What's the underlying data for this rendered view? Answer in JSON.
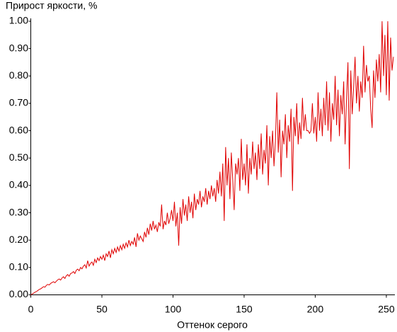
{
  "chart_data": {
    "type": "line",
    "title": "Прирост яркости, %",
    "x_label": "Оттенок серого",
    "x": [
      0,
      1,
      2,
      3,
      4,
      5,
      6,
      7,
      8,
      9,
      10,
      11,
      12,
      13,
      14,
      15,
      16,
      17,
      18,
      19,
      20,
      21,
      22,
      23,
      24,
      25,
      26,
      27,
      28,
      29,
      30,
      31,
      32,
      33,
      34,
      35,
      36,
      37,
      38,
      39,
      40,
      41,
      42,
      43,
      44,
      45,
      46,
      47,
      48,
      49,
      50,
      51,
      52,
      53,
      54,
      55,
      56,
      57,
      58,
      59,
      60,
      61,
      62,
      63,
      64,
      65,
      66,
      67,
      68,
      69,
      70,
      71,
      72,
      73,
      74,
      75,
      76,
      77,
      78,
      79,
      80,
      81,
      82,
      83,
      84,
      85,
      86,
      87,
      88,
      89,
      90,
      91,
      92,
      93,
      94,
      95,
      96,
      97,
      98,
      99,
      100,
      101,
      102,
      103,
      104,
      105,
      106,
      107,
      108,
      109,
      110,
      111,
      112,
      113,
      114,
      115,
      116,
      117,
      118,
      119,
      120,
      121,
      122,
      123,
      124,
      125,
      126,
      127,
      128,
      129,
      130,
      131,
      132,
      133,
      134,
      135,
      136,
      137,
      138,
      139,
      140,
      141,
      142,
      143,
      144,
      145,
      146,
      147,
      148,
      149,
      150,
      151,
      152,
      153,
      154,
      155,
      156,
      157,
      158,
      159,
      160,
      161,
      162,
      163,
      164,
      165,
      166,
      167,
      168,
      169,
      170,
      171,
      172,
      173,
      174,
      175,
      176,
      177,
      178,
      179,
      180,
      181,
      182,
      183,
      184,
      185,
      186,
      187,
      188,
      189,
      190,
      191,
      192,
      193,
      194,
      195,
      196,
      197,
      198,
      199,
      200,
      201,
      202,
      203,
      204,
      205,
      206,
      207,
      208,
      209,
      210,
      211,
      212,
      213,
      214,
      215,
      216,
      217,
      218,
      219,
      220,
      221,
      222,
      223,
      224,
      225,
      226,
      227,
      228,
      229,
      230,
      231,
      232,
      233,
      234,
      235,
      236,
      237,
      238,
      239,
      240,
      241,
      242,
      243,
      244,
      245,
      246,
      247,
      248,
      249,
      250,
      251,
      252,
      253,
      254,
      255
    ],
    "series": [
      {
        "color": "#e00000",
        "values": [
          0,
          0.003,
          0.006,
          0.01,
          0.012,
          0.016,
          0.02,
          0.022,
          0.026,
          0.03,
          0.028,
          0.035,
          0.038,
          0.036,
          0.042,
          0.045,
          0.048,
          0.044,
          0.05,
          0.055,
          0.058,
          0.054,
          0.062,
          0.066,
          0.06,
          0.07,
          0.074,
          0.068,
          0.078,
          0.08,
          0.085,
          0.078,
          0.09,
          0.094,
          0.088,
          0.1,
          0.095,
          0.105,
          0.11,
          0.098,
          0.125,
          0.105,
          0.115,
          0.12,
          0.108,
          0.13,
          0.118,
          0.135,
          0.125,
          0.14,
          0.13,
          0.145,
          0.125,
          0.15,
          0.14,
          0.16,
          0.135,
          0.165,
          0.15,
          0.17,
          0.155,
          0.175,
          0.16,
          0.18,
          0.165,
          0.185,
          0.17,
          0.19,
          0.175,
          0.2,
          0.18,
          0.195,
          0.185,
          0.21,
          0.175,
          0.225,
          0.2,
          0.215,
          0.205,
          0.195,
          0.23,
          0.21,
          0.245,
          0.22,
          0.26,
          0.235,
          0.27,
          0.24,
          0.255,
          0.23,
          0.265,
          0.25,
          0.33,
          0.24,
          0.27,
          0.255,
          0.3,
          0.26,
          0.28,
          0.31,
          0.27,
          0.34,
          0.25,
          0.3,
          0.18,
          0.32,
          0.26,
          0.35,
          0.29,
          0.33,
          0.27,
          0.36,
          0.3,
          0.34,
          0.28,
          0.37,
          0.31,
          0.35,
          0.33,
          0.38,
          0.32,
          0.36,
          0.34,
          0.39,
          0.33,
          0.38,
          0.35,
          0.4,
          0.36,
          0.39,
          0.34,
          0.42,
          0.37,
          0.45,
          0.36,
          0.48,
          0.27,
          0.54,
          0.4,
          0.5,
          0.35,
          0.52,
          0.42,
          0.31,
          0.48,
          0.44,
          0.5,
          0.38,
          0.57,
          0.42,
          0.48,
          0.4,
          0.55,
          0.37,
          0.5,
          0.44,
          0.56,
          0.46,
          0.52,
          0.42,
          0.55,
          0.46,
          0.59,
          0.44,
          0.53,
          0.48,
          0.62,
          0.4,
          0.58,
          0.5,
          0.6,
          0.47,
          0.56,
          0.74,
          0.52,
          0.64,
          0.43,
          0.6,
          0.55,
          0.66,
          0.5,
          0.62,
          0.56,
          0.68,
          0.38,
          0.65,
          0.58,
          0.7,
          0.55,
          0.63,
          0.57,
          0.72,
          0.6,
          0.66,
          0.6,
          0.6,
          0.59,
          0.6,
          0.7,
          0.59,
          0.65,
          0.56,
          0.74,
          0.6,
          0.68,
          0.58,
          0.72,
          0.62,
          0.78,
          0.6,
          0.74,
          0.56,
          0.7,
          0.64,
          0.8,
          0.62,
          0.75,
          0.58,
          0.73,
          0.66,
          0.78,
          0.55,
          0.72,
          0.85,
          0.46,
          0.82,
          0.66,
          0.76,
          0.87,
          0.7,
          0.8,
          0.67,
          0.78,
          0.72,
          0.91,
          0.74,
          0.84,
          0.78,
          0.8,
          0.68,
          0.61,
          0.82,
          0.72,
          0.86,
          0.78,
          0.88,
          0.74,
          1.0,
          0.8,
          0.95,
          0.73,
          1.0,
          0.71,
          0.94,
          0.82,
          0.87
        ]
      }
    ],
    "xlim": [
      0,
      256
    ],
    "ylim": [
      0,
      1
    ],
    "xticks": [
      0,
      50,
      100,
      150,
      200,
      250
    ],
    "yticks": [
      {
        "value": 0,
        "label": "0.00"
      },
      {
        "value": 0.1,
        "label": "0.10"
      },
      {
        "value": 0.2,
        "label": "0.20"
      },
      {
        "value": 0.3,
        "label": "0.30"
      },
      {
        "value": 0.4,
        "label": "0.40"
      },
      {
        "value": 0.5,
        "label": "0.50"
      },
      {
        "value": 0.6,
        "label": "0.60"
      },
      {
        "value": 0.7,
        "label": "0.70"
      },
      {
        "value": 0.8,
        "label": "0.80"
      },
      {
        "value": 0.9,
        "label": "0.90"
      },
      {
        "value": 1,
        "label": "1.00"
      }
    ],
    "grid": false
  }
}
